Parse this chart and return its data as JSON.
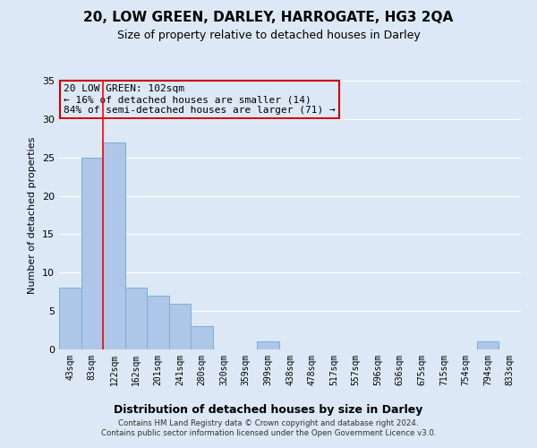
{
  "title": "20, LOW GREEN, DARLEY, HARROGATE, HG3 2QA",
  "subtitle": "Size of property relative to detached houses in Darley",
  "xlabel": "Distribution of detached houses by size in Darley",
  "ylabel": "Number of detached properties",
  "bin_labels": [
    "43sqm",
    "83sqm",
    "122sqm",
    "162sqm",
    "201sqm",
    "241sqm",
    "280sqm",
    "320sqm",
    "359sqm",
    "399sqm",
    "438sqm",
    "478sqm",
    "517sqm",
    "557sqm",
    "596sqm",
    "636sqm",
    "675sqm",
    "715sqm",
    "754sqm",
    "794sqm",
    "833sqm"
  ],
  "bar_heights": [
    8,
    25,
    27,
    8,
    7,
    6,
    3,
    0,
    0,
    1,
    0,
    0,
    0,
    0,
    0,
    0,
    0,
    0,
    0,
    1,
    0
  ],
  "bar_color": "#aec6e8",
  "bar_edge_color": "#7aafd4",
  "background_color": "#dce8f5",
  "grid_color": "#ffffff",
  "annotation_box_text": "20 LOW GREEN: 102sqm\n← 16% of detached houses are smaller (14)\n84% of semi-detached houses are larger (71) →",
  "annotation_box_color": "#cc0000",
  "red_line_x": 1.5,
  "ylim": [
    0,
    35
  ],
  "yticks": [
    0,
    5,
    10,
    15,
    20,
    25,
    30,
    35
  ],
  "title_fontsize": 11,
  "subtitle_fontsize": 9,
  "ylabel_fontsize": 8,
  "xlabel_fontsize": 9,
  "footer_line1": "Contains HM Land Registry data © Crown copyright and database right 2024.",
  "footer_line2": "Contains public sector information licensed under the Open Government Licence v3.0."
}
